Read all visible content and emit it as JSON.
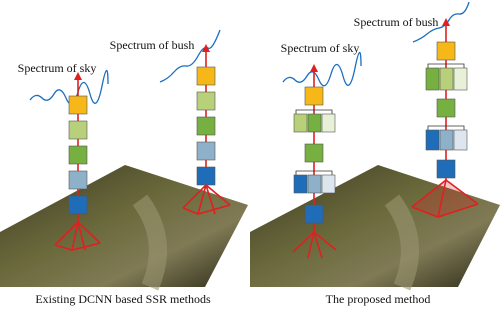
{
  "panels": [
    {
      "caption": "Existing DCNN based SSR methods",
      "sky_label": "Spectrum of sky",
      "bush_label": "Spectrum of bush"
    },
    {
      "caption": "The proposed method",
      "sky_label": "Spectrum of sky",
      "bush_label": "Spectrum of bush"
    }
  ]
}
